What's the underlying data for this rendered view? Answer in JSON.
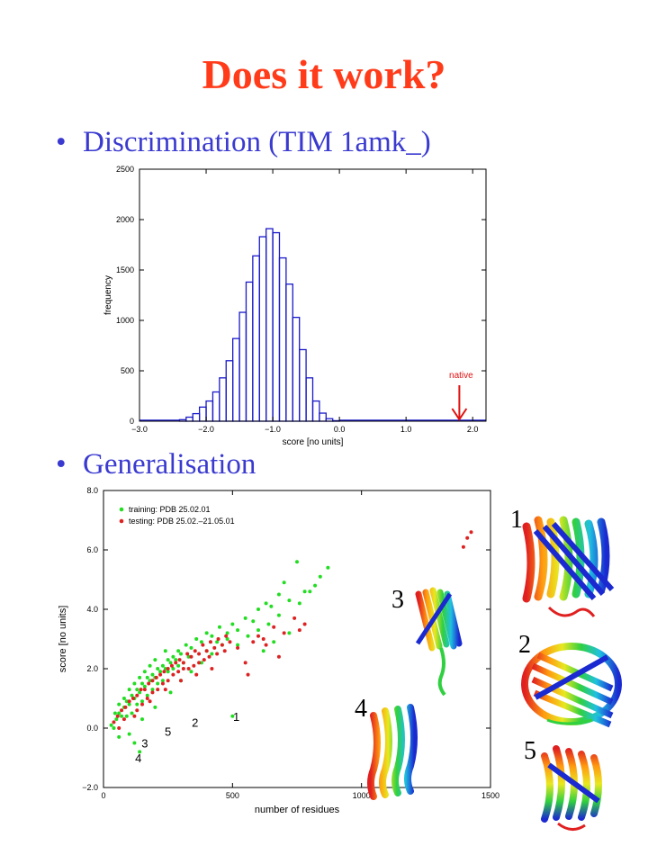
{
  "title": "Does it work?",
  "bullets": [
    "Discrimination (TIM 1amk_)",
    "Generalisation"
  ],
  "bullet_glyph": "•",
  "colors": {
    "title": "#ff3b1a",
    "bullet": "#3a3ad0",
    "hist": "#1a1ac8",
    "native": "#e01010",
    "training": "#22dd22",
    "testing": "#dd2222"
  },
  "chart_data": [
    {
      "type": "bar",
      "xlabel": "score [no units]",
      "ylabel": "frequency",
      "xlim": [
        -3.0,
        2.2
      ],
      "ylim": [
        0,
        2500
      ],
      "xticks": [
        -3.0,
        -2.0,
        -1.0,
        0.0,
        1.0,
        2.0
      ],
      "xtick_labels": [
        "−3.0",
        "−2.0",
        "−1.0",
        "0.0",
        "1.0",
        "2.0"
      ],
      "yticks": [
        0,
        500,
        1000,
        1500,
        2000,
        2500
      ],
      "ytick_labels": [
        "0",
        "500",
        "1000",
        "1500",
        "2000",
        "2500"
      ],
      "bin_width": 0.1,
      "bins_start": [
        -2.4,
        -2.3,
        -2.2,
        -2.1,
        -2.0,
        -1.9,
        -1.8,
        -1.7,
        -1.6,
        -1.5,
        -1.4,
        -1.3,
        -1.2,
        -1.1,
        -1.0,
        -0.9,
        -0.8,
        -0.7,
        -0.6,
        -0.5,
        -0.4,
        -0.3,
        -0.2,
        -0.1
      ],
      "values": [
        15,
        40,
        75,
        140,
        200,
        290,
        430,
        600,
        820,
        1080,
        1380,
        1640,
        1830,
        1910,
        1870,
        1620,
        1360,
        1030,
        710,
        430,
        200,
        80,
        25,
        5
      ],
      "annotation": {
        "text": "native",
        "x": 1.8
      }
    },
    {
      "type": "scatter",
      "xlabel": "number of residues",
      "ylabel": "score [no units]",
      "xlim": [
        0,
        1500
      ],
      "ylim": [
        -2.0,
        8.0
      ],
      "xticks": [
        0,
        500,
        1000,
        1500
      ],
      "xtick_labels": [
        "0",
        "500",
        "1000",
        "1500"
      ],
      "yticks": [
        -2.0,
        0.0,
        2.0,
        4.0,
        6.0,
        8.0
      ],
      "ytick_labels": [
        "−2.0",
        "0.0",
        "2.0",
        "4.0",
        "6.0",
        "8.0"
      ],
      "legend": "top-left",
      "series": [
        {
          "name": "training: PDB 25.02.01",
          "color": "#22dd22",
          "points": [
            [
              30,
              0.1
            ],
            [
              40,
              0.0
            ],
            [
              50,
              0.3
            ],
            [
              60,
              0.5
            ],
            [
              70,
              0.4
            ],
            [
              80,
              0.7
            ],
            [
              90,
              0.9
            ],
            [
              100,
              0.8
            ],
            [
              110,
              1.1
            ],
            [
              120,
              1.0
            ],
            [
              130,
              1.3
            ],
            [
              140,
              1.2
            ],
            [
              150,
              1.5
            ],
            [
              160,
              1.4
            ],
            [
              170,
              1.7
            ],
            [
              180,
              1.6
            ],
            [
              190,
              1.8
            ],
            [
              200,
              1.7
            ],
            [
              210,
              2.0
            ],
            [
              220,
              1.9
            ],
            [
              230,
              2.1
            ],
            [
              240,
              2.0
            ],
            [
              250,
              2.3
            ],
            [
              260,
              2.2
            ],
            [
              270,
              2.4
            ],
            [
              280,
              2.3
            ],
            [
              290,
              2.6
            ],
            [
              300,
              2.5
            ],
            [
              320,
              2.8
            ],
            [
              340,
              2.7
            ],
            [
              360,
              3.0
            ],
            [
              380,
              2.9
            ],
            [
              400,
              3.2
            ],
            [
              420,
              3.1
            ],
            [
              450,
              3.4
            ],
            [
              480,
              3.2
            ],
            [
              500,
              3.5
            ],
            [
              520,
              3.3
            ],
            [
              550,
              3.7
            ],
            [
              580,
              3.6
            ],
            [
              600,
              4.0
            ],
            [
              630,
              4.2
            ],
            [
              650,
              4.1
            ],
            [
              680,
              4.5
            ],
            [
              700,
              4.9
            ],
            [
              720,
              4.3
            ],
            [
              750,
              5.6
            ],
            [
              780,
              4.6
            ],
            [
              820,
              4.8
            ],
            [
              870,
              5.4
            ],
            [
              90,
              0.4
            ],
            [
              110,
              0.5
            ],
            [
              130,
              0.8
            ],
            [
              150,
              0.9
            ],
            [
              170,
              1.1
            ],
            [
              190,
              1.3
            ],
            [
              210,
              1.5
            ],
            [
              230,
              1.6
            ],
            [
              250,
              1.9
            ],
            [
              270,
              2.0
            ],
            [
              290,
              2.1
            ],
            [
              310,
              2.2
            ],
            [
              330,
              2.4
            ],
            [
              200,
              0.7
            ],
            [
              150,
              0.3
            ],
            [
              100,
              -0.2
            ],
            [
              60,
              -0.3
            ],
            [
              500,
              0.4
            ],
            [
              120,
              -0.5
            ],
            [
              140,
              -0.8
            ],
            [
              260,
              1.2
            ],
            [
              300,
              1.6
            ],
            [
              340,
              1.9
            ],
            [
              380,
              2.2
            ],
            [
              420,
              2.5
            ],
            [
              460,
              2.8
            ],
            [
              240,
              2.6
            ],
            [
              200,
              2.3
            ],
            [
              180,
              2.1
            ],
            [
              160,
              1.9
            ],
            [
              140,
              1.7
            ],
            [
              120,
              1.5
            ],
            [
              100,
              1.3
            ],
            [
              80,
              1.0
            ],
            [
              60,
              0.8
            ],
            [
              45,
              0.5
            ],
            [
              400,
              2.6
            ],
            [
              440,
              2.9
            ],
            [
              480,
              3.0
            ],
            [
              520,
              2.8
            ],
            [
              560,
              3.1
            ],
            [
              600,
              3.3
            ],
            [
              640,
              3.5
            ],
            [
              680,
              3.8
            ],
            [
              620,
              2.6
            ],
            [
              720,
              3.2
            ],
            [
              760,
              4.2
            ],
            [
              800,
              4.6
            ],
            [
              840,
              5.1
            ],
            [
              660,
              2.9
            ]
          ]
        },
        {
          "name": "testing: PDB 25.02.–21.05.01",
          "color": "#dd2222",
          "points": [
            [
              40,
              0.2
            ],
            [
              55,
              0.4
            ],
            [
              70,
              0.6
            ],
            [
              85,
              0.7
            ],
            [
              100,
              0.9
            ],
            [
              115,
              1.0
            ],
            [
              130,
              1.1
            ],
            [
              145,
              1.3
            ],
            [
              160,
              1.3
            ],
            [
              175,
              1.5
            ],
            [
              190,
              1.6
            ],
            [
              205,
              1.7
            ],
            [
              220,
              1.8
            ],
            [
              235,
              1.9
            ],
            [
              250,
              2.0
            ],
            [
              265,
              2.1
            ],
            [
              280,
              2.2
            ],
            [
              295,
              2.3
            ],
            [
              310,
              2.2
            ],
            [
              325,
              2.5
            ],
            [
              340,
              2.4
            ],
            [
              355,
              2.6
            ],
            [
              370,
              2.5
            ],
            [
              385,
              2.8
            ],
            [
              400,
              2.6
            ],
            [
              415,
              2.9
            ],
            [
              430,
              2.7
            ],
            [
              445,
              3.0
            ],
            [
              460,
              2.8
            ],
            [
              475,
              3.1
            ],
            [
              490,
              2.9
            ],
            [
              520,
              2.7
            ],
            [
              550,
              2.2
            ],
            [
              580,
              2.9
            ],
            [
              600,
              3.1
            ],
            [
              630,
              2.8
            ],
            [
              660,
              3.4
            ],
            [
              700,
              3.2
            ],
            [
              740,
              3.7
            ],
            [
              780,
              3.5
            ],
            [
              130,
              0.6
            ],
            [
              150,
              0.8
            ],
            [
              170,
              1.0
            ],
            [
              190,
              1.2
            ],
            [
              210,
              1.3
            ],
            [
              230,
              1.5
            ],
            [
              250,
              1.6
            ],
            [
              270,
              1.8
            ],
            [
              290,
              1.9
            ],
            [
              310,
              2.0
            ],
            [
              330,
              2.0
            ],
            [
              350,
              2.1
            ],
            [
              370,
              2.2
            ],
            [
              390,
              2.3
            ],
            [
              410,
              2.4
            ],
            [
              440,
              2.5
            ],
            [
              470,
              2.6
            ],
            [
              420,
              2.0
            ],
            [
              360,
              1.8
            ],
            [
              300,
              1.6
            ],
            [
              240,
              1.3
            ],
            [
              180,
              0.9
            ],
            [
              120,
              0.4
            ],
            [
              80,
              0.3
            ],
            [
              60,
              0.0
            ],
            [
              1395,
              6.1
            ],
            [
              1410,
              6.4
            ],
            [
              1425,
              6.6
            ],
            [
              560,
              1.8
            ],
            [
              620,
              3.0
            ],
            [
              680,
              2.4
            ],
            [
              760,
              3.3
            ]
          ]
        }
      ],
      "point_labels": [
        {
          "text": "1",
          "x": 515,
          "y": 0.4
        },
        {
          "text": "2",
          "x": 355,
          "y": 0.2
        },
        {
          "text": "5",
          "x": 250,
          "y": -0.1
        },
        {
          "text": "3",
          "x": 160,
          "y": -0.5
        },
        {
          "text": "4",
          "x": 135,
          "y": -1.0
        }
      ]
    }
  ],
  "structure_labels": [
    "1",
    "2",
    "3",
    "4",
    "5"
  ]
}
